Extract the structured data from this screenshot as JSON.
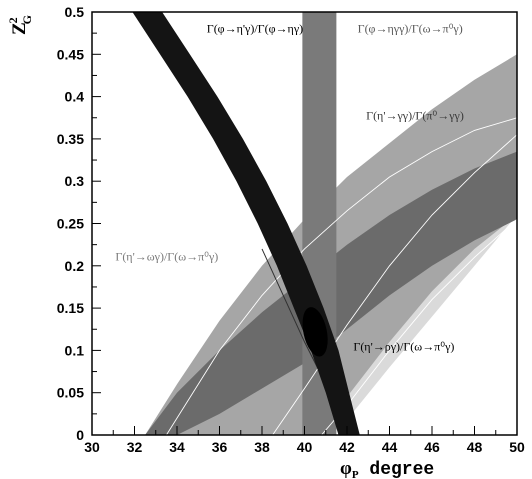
{
  "chart_data": {
    "type": "area",
    "xlim": [
      30,
      50
    ],
    "ylim": [
      0,
      0.5
    ],
    "x_ticks": [
      "30",
      "32",
      "34",
      "36",
      "38",
      "40",
      "42",
      "44",
      "46",
      "48",
      "50"
    ],
    "y_ticks": [
      "0",
      "0.05",
      "0.1",
      "0.15",
      "0.2",
      "0.25",
      "0.3",
      "0.35",
      "0.4",
      "0.45",
      "0.5"
    ],
    "xlabel": {
      "main": "φ",
      "sub": "P",
      "suffix": " degree"
    },
    "ylabel": {
      "main": "Z",
      "sup": "2",
      "sub": "G"
    },
    "grid": false,
    "bands": [
      {
        "id": "eta-prime-rho",
        "label": "Γ(η'→ργ)/Γ(ω→π⁰γ)",
        "color": "#dadada",
        "x": [
          36.2,
          38,
          40,
          42,
          44,
          46,
          48,
          50
        ],
        "y_low": [
          0,
          0,
          0,
          0.018,
          0.08,
          0.14,
          0.2,
          0.26
        ],
        "y_high": [
          0,
          0.045,
          0.11,
          0.175,
          0.235,
          0.29,
          0.34,
          0.385
        ]
      },
      {
        "id": "eta-prime-gamma-gamma",
        "label": "Γ(η'→γγ)/Γ(π⁰→γγ)",
        "color": "#a6a6a6",
        "x": [
          32.5,
          34,
          36,
          38,
          40,
          42,
          44,
          46,
          48,
          50
        ],
        "y_low": [
          0,
          0,
          0,
          0,
          0,
          0.045,
          0.11,
          0.17,
          0.22,
          0.26
        ],
        "y_high": [
          0,
          0.06,
          0.135,
          0.2,
          0.255,
          0.305,
          0.345,
          0.385,
          0.42,
          0.45
        ]
      },
      {
        "id": "eta-prime-omega",
        "label": "Γ(η'→ωγ)/Γ(ω→π⁰γ)",
        "color": "#6b6b6b",
        "x": [
          32.5,
          34,
          36,
          38,
          40,
          42,
          44,
          46,
          48,
          50
        ],
        "y_low": [
          0,
          0,
          0.025,
          0.055,
          0.085,
          0.125,
          0.165,
          0.2,
          0.23,
          0.255
        ],
        "y_high": [
          0,
          0.05,
          0.1,
          0.145,
          0.185,
          0.225,
          0.26,
          0.29,
          0.315,
          0.335
        ]
      }
    ],
    "vertical_band": {
      "id": "phi-eta-gamma-gamma",
      "label": "Γ(φ→ηγγ)/Γ(ω→π⁰γ)",
      "color": "#7a7a7a",
      "x_range": [
        39.9,
        41.5
      ]
    },
    "dark_band": {
      "id": "phi-eta-prime",
      "label": "Γ(φ→η'γ)/Γ(φ→ηγ)",
      "color": "#141414",
      "y": [
        0.5,
        0.45,
        0.4,
        0.35,
        0.3,
        0.25,
        0.2,
        0.15,
        0.1,
        0.05,
        0
      ],
      "x_left": [
        31.9,
        33.2,
        34.5,
        35.7,
        36.8,
        37.8,
        38.7,
        39.5,
        40.3,
        41.0,
        41.6
      ],
      "x_right": [
        33.3,
        34.6,
        35.9,
        37.1,
        38.2,
        39.2,
        40.1,
        40.9,
        41.6,
        42.1,
        42.6
      ]
    },
    "lines": [
      {
        "id": "white-curve-1",
        "color": "#ffffff",
        "x": [
          38.5,
          40,
          42,
          44,
          46,
          48,
          50
        ],
        "y": [
          0,
          0.055,
          0.13,
          0.2,
          0.26,
          0.31,
          0.355
        ]
      },
      {
        "id": "white-curve-2",
        "color": "#ffffff",
        "x": [
          40.8,
          42,
          44,
          46,
          48,
          50
        ],
        "y": [
          0,
          0.035,
          0.1,
          0.16,
          0.21,
          0.255
        ]
      },
      {
        "id": "white-curve-3",
        "color": "#ffffff",
        "x": [
          33.5,
          36,
          38,
          40,
          42,
          44,
          46,
          48,
          50
        ],
        "y": [
          0,
          0.1,
          0.165,
          0.22,
          0.265,
          0.305,
          0.335,
          0.36,
          0.375
        ]
      },
      {
        "id": "thin-dark-line",
        "color": "#303030",
        "x": [
          38.0,
          40,
          42,
          42.5
        ],
        "y": [
          0.22,
          0.11,
          0.01,
          0
        ]
      }
    ],
    "best_fit": {
      "x": 40.5,
      "y": 0.122,
      "dx": 0.55,
      "dy": 0.025,
      "color": "#000000"
    },
    "annotations": [
      {
        "id": "ann-phi-eta-prime",
        "text": "Γ(φ→η'γ)/Γ(φ→ηγ)",
        "x": 35.4,
        "y": 0.476,
        "color": "#000000"
      },
      {
        "id": "ann-phi-eta-gamma-gamma",
        "text": "Γ(φ→ηγγ)/Γ(ω→π⁰γ)",
        "x": 42.5,
        "y": 0.476,
        "color": "#5a5a5a"
      },
      {
        "id": "ann-eta-prime-gamma-gamma",
        "text": "Γ(η'→γγ)/Γ(π⁰→γγ)",
        "x": 42.9,
        "y": 0.373,
        "color": "#3a3a3a"
      },
      {
        "id": "ann-eta-prime-omega",
        "text": "Γ(η'→ωγ)/Γ(ω→π⁰γ)",
        "x": 31.1,
        "y": 0.206,
        "color": "#7a7a7a"
      },
      {
        "id": "ann-eta-prime-rho",
        "text": "Γ(η'→ργ)/Γ(ω→π⁰γ)",
        "x": 42.3,
        "y": 0.1,
        "color": "#000000"
      }
    ]
  }
}
